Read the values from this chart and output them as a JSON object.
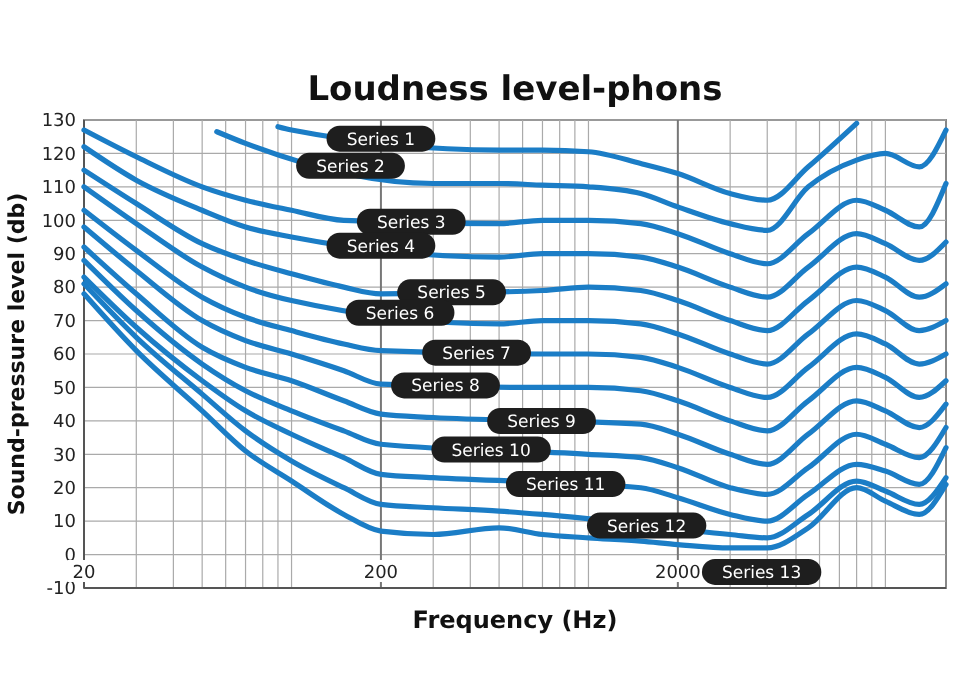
{
  "chart_data": {
    "type": "line",
    "title": "Loudness level-phons",
    "xlabel": "Frequency (Hz)",
    "ylabel": "Sound-pressure level (db)",
    "log": "x",
    "grid": true,
    "xlim": [
      20,
      16000
    ],
    "ylim": [
      -10,
      130
    ],
    "xticks": [
      20,
      {
        "value": 30,
        "label": null
      },
      {
        "value": 40,
        "label": null
      },
      {
        "value": 50,
        "label": null
      },
      {
        "value": 60,
        "label": null
      },
      {
        "value": 70,
        "label": null
      },
      {
        "value": 80,
        "label": null
      },
      {
        "value": 90,
        "label": null
      },
      {
        "value": 100,
        "label": null
      },
      200,
      {
        "value": 300,
        "label": null
      },
      {
        "value": 400,
        "label": null
      },
      {
        "value": 500,
        "label": null
      },
      {
        "value": 600,
        "label": null
      },
      {
        "value": 700,
        "label": null
      },
      {
        "value": 800,
        "label": null
      },
      {
        "value": 900,
        "label": null
      },
      {
        "value": 1000,
        "label": null
      },
      2000,
      {
        "value": 3000,
        "label": null
      },
      {
        "value": 4000,
        "label": null
      },
      {
        "value": 5000,
        "label": null
      },
      {
        "value": 6000,
        "label": null
      },
      {
        "value": 7000,
        "label": null
      },
      {
        "value": 8000,
        "label": null
      },
      {
        "value": 9000,
        "label": null
      },
      {
        "value": 10000,
        "label": null
      }
    ],
    "yticks": [
      -10,
      0,
      10,
      20,
      30,
      40,
      50,
      60,
      70,
      80,
      90,
      100,
      110,
      120,
      130
    ],
    "series": [
      {
        "name": "Series 1",
        "color": "#1b7dc6",
        "x": [
          90,
          100,
          500,
          700,
          1000,
          1500,
          2000,
          3000,
          4000,
          5500,
          8000
        ],
        "values": [
          128,
          127,
          121,
          121,
          120.5,
          117,
          114,
          108,
          106,
          116,
          129
        ]
      },
      {
        "name": "Series 2",
        "color": "#1b7dc6",
        "x": [
          56,
          70,
          300,
          500,
          700,
          1000,
          1500,
          2000,
          3000,
          4000,
          5500,
          8000,
          10000,
          13000,
          16000
        ],
        "values": [
          126.5,
          123,
          111,
          111,
          110.5,
          110,
          108,
          104,
          99,
          97,
          110,
          118,
          120,
          116,
          127
        ]
      },
      {
        "name": "Series 3",
        "color": "#1b7dc6",
        "x": [
          20,
          30,
          50,
          70,
          100,
          150,
          500,
          700,
          1000,
          1500,
          2000,
          3000,
          4000,
          5500,
          8000,
          10000,
          13000,
          16000
        ],
        "values": [
          127,
          119,
          110,
          106,
          103,
          100,
          99,
          100,
          100,
          99,
          96,
          90,
          87,
          96,
          106,
          103,
          98,
          111
        ]
      },
      {
        "name": "Series 4",
        "color": "#1b7dc6",
        "x": [
          20,
          30,
          50,
          70,
          100,
          500,
          700,
          1000,
          1500,
          2000,
          3000,
          4000,
          5500,
          8000,
          10000,
          13000,
          16000
        ],
        "values": [
          122,
          112,
          103,
          98,
          95,
          89,
          90,
          90,
          89,
          86,
          80,
          77,
          86,
          96,
          93,
          88,
          93.5
        ]
      },
      {
        "name": "Series 5",
        "color": "#1b7dc6",
        "x": [
          20,
          30,
          50,
          70,
          100,
          150,
          200,
          700,
          1000,
          1500,
          2000,
          3000,
          4000,
          5500,
          8000,
          10000,
          13000,
          16000
        ],
        "values": [
          115,
          105,
          93,
          88,
          84,
          80,
          78,
          79,
          80,
          79,
          76,
          70,
          67,
          76,
          86,
          83,
          77,
          81
        ]
      },
      {
        "name": "Series 6",
        "color": "#1b7dc6",
        "x": [
          20,
          30,
          50,
          70,
          100,
          500,
          700,
          1000,
          1500,
          2000,
          3000,
          4000,
          5500,
          8000,
          10000,
          13000,
          16000
        ],
        "values": [
          110,
          99,
          86,
          80,
          76,
          69,
          70,
          70,
          69,
          66,
          60,
          57,
          66,
          76,
          73,
          67,
          70
        ]
      },
      {
        "name": "Series 7",
        "color": "#1b7dc6",
        "x": [
          20,
          30,
          50,
          70,
          100,
          150,
          200,
          700,
          1000,
          1500,
          2000,
          3000,
          4000,
          5500,
          8000,
          10000,
          13000,
          16000
        ],
        "values": [
          103,
          91,
          77,
          71,
          67,
          63,
          61,
          60,
          60,
          59,
          56,
          50,
          47,
          56,
          66,
          63,
          57,
          60
        ]
      },
      {
        "name": "Series 8",
        "color": "#1b7dc6",
        "x": [
          20,
          30,
          50,
          70,
          100,
          150,
          200,
          700,
          1000,
          1500,
          2000,
          3000,
          4000,
          5500,
          8000,
          10000,
          13000,
          16000
        ],
        "values": [
          98,
          85,
          70,
          64,
          60,
          55,
          51,
          50,
          50,
          49,
          46,
          40,
          37,
          46,
          56,
          53,
          47,
          52
        ]
      },
      {
        "name": "Series 9",
        "color": "#1b7dc6",
        "x": [
          20,
          30,
          50,
          70,
          100,
          150,
          200,
          300,
          1500,
          2000,
          3000,
          4000,
          5500,
          8000,
          10000,
          13000,
          16000
        ],
        "values": [
          92,
          78,
          62,
          56,
          52,
          46,
          42,
          41,
          39,
          36,
          30,
          27,
          36,
          46,
          43,
          38,
          45
        ]
      },
      {
        "name": "Series 10",
        "color": "#1b7dc6",
        "x": [
          20,
          30,
          50,
          70,
          100,
          150,
          200,
          1000,
          1500,
          2000,
          3000,
          4000,
          5500,
          8000,
          10000,
          13000,
          16000
        ],
        "values": [
          88,
          73,
          57,
          49,
          43,
          37,
          33,
          30,
          29,
          26,
          20,
          18,
          26,
          36,
          33,
          29,
          38
        ]
      },
      {
        "name": "Series 11",
        "color": "#1b7dc6",
        "x": [
          20,
          30,
          50,
          70,
          100,
          150,
          200,
          300,
          1500,
          2000,
          3000,
          4000,
          5500,
          8000,
          10000,
          13000,
          16000
        ],
        "values": [
          83,
          68,
          52,
          43,
          36,
          29,
          24,
          23,
          20,
          17,
          12,
          10,
          18,
          27,
          25,
          21,
          32
        ]
      },
      {
        "name": "Series 12",
        "color": "#1b7dc6",
        "x": [
          20,
          30,
          50,
          70,
          100,
          150,
          200,
          300,
          500,
          700,
          3000,
          4000,
          5500,
          8000,
          10000,
          13000,
          16000
        ],
        "values": [
          81,
          65,
          48,
          37,
          28,
          20,
          15,
          14,
          13,
          12,
          6,
          5,
          12,
          22,
          19,
          15,
          23
        ]
      },
      {
        "name": "Series 13",
        "color": "#1b7dc6",
        "x": [
          20,
          30,
          50,
          70,
          100,
          150,
          200,
          300,
          500,
          700,
          1000,
          1500,
          2000,
          3000,
          4000,
          5500,
          8000,
          10000,
          13000,
          16000
        ],
        "values": [
          78,
          61,
          43,
          31,
          22,
          12,
          7,
          6,
          8,
          6,
          5,
          4,
          3,
          2,
          2,
          8,
          20,
          16,
          12,
          21
        ]
      }
    ]
  }
}
